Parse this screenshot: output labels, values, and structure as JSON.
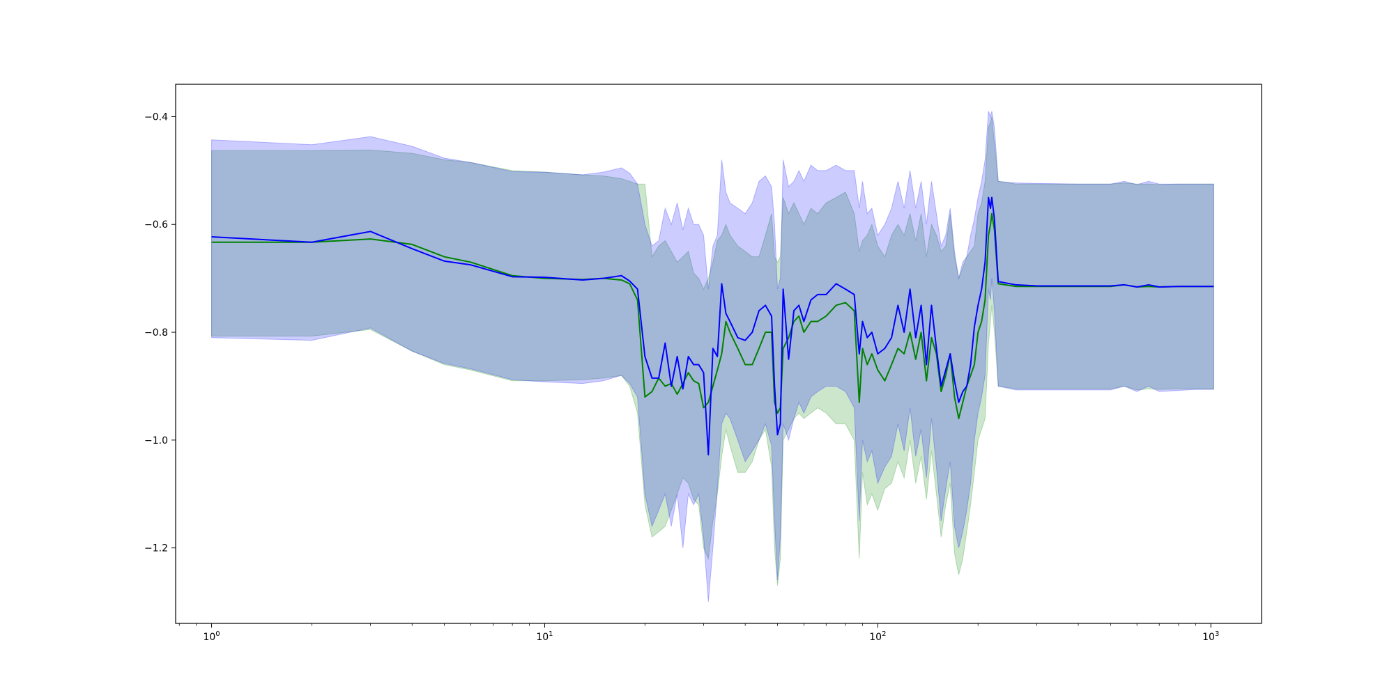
{
  "chart_data": {
    "type": "line",
    "title": "",
    "xlabel": "",
    "ylabel": "",
    "xscale": "log",
    "xlim": [
      0.78,
      1420
    ],
    "ylim": [
      -1.34,
      -0.34
    ],
    "grid": false,
    "x_ticks": [
      {
        "value": 1,
        "base": "10",
        "exp": "0"
      },
      {
        "value": 10,
        "base": "10",
        "exp": "1"
      },
      {
        "value": 100,
        "base": "10",
        "exp": "2"
      },
      {
        "value": 1000,
        "base": "10",
        "exp": "3"
      }
    ],
    "y_ticks": [
      {
        "value": -0.4,
        "label": "−0.4"
      },
      {
        "value": -0.6,
        "label": "−0.6"
      },
      {
        "value": -0.8,
        "label": "−0.8"
      },
      {
        "value": -1.0,
        "label": "−1.0"
      },
      {
        "value": -1.2,
        "label": "−1.2"
      }
    ],
    "series": [
      {
        "color": "#008000",
        "band_color": "#008000",
        "band_opacity": 0.2,
        "x": [
          1,
          2,
          3,
          4,
          5,
          6,
          8,
          10,
          13,
          15,
          17,
          18,
          19,
          20,
          21,
          22,
          23,
          24,
          25,
          26,
          27,
          28,
          29,
          30,
          31,
          32,
          33,
          34,
          35,
          36,
          38,
          40,
          42,
          44,
          46,
          48,
          49,
          50,
          51,
          52,
          54,
          56,
          58,
          60,
          63,
          66,
          70,
          75,
          80,
          85,
          88,
          90,
          93,
          96,
          100,
          105,
          110,
          115,
          120,
          125,
          130,
          135,
          140,
          145,
          150,
          155,
          160,
          165,
          170,
          175,
          180,
          185,
          190,
          195,
          200,
          205,
          210,
          215,
          218,
          220,
          224,
          230,
          260,
          300,
          400,
          500,
          550,
          600,
          650,
          700,
          800,
          900,
          1020
        ],
        "y": [
          -0.633,
          -0.633,
          -0.627,
          -0.637,
          -0.66,
          -0.67,
          -0.695,
          -0.7,
          -0.702,
          -0.7,
          -0.703,
          -0.71,
          -0.74,
          -0.92,
          -0.91,
          -0.885,
          -0.9,
          -0.895,
          -0.915,
          -0.895,
          -0.875,
          -0.89,
          -0.895,
          -0.94,
          -0.93,
          -0.9,
          -0.87,
          -0.84,
          -0.78,
          -0.8,
          -0.83,
          -0.86,
          -0.86,
          -0.83,
          -0.8,
          -0.8,
          -0.93,
          -0.95,
          -0.94,
          -0.83,
          -0.81,
          -0.78,
          -0.77,
          -0.8,
          -0.78,
          -0.78,
          -0.77,
          -0.75,
          -0.745,
          -0.76,
          -0.93,
          -0.83,
          -0.86,
          -0.84,
          -0.87,
          -0.89,
          -0.86,
          -0.83,
          -0.84,
          -0.8,
          -0.85,
          -0.8,
          -0.89,
          -0.81,
          -0.84,
          -0.91,
          -0.88,
          -0.84,
          -0.92,
          -0.96,
          -0.93,
          -0.9,
          -0.88,
          -0.86,
          -0.8,
          -0.78,
          -0.74,
          -0.62,
          -0.6,
          -0.58,
          -0.61,
          -0.71,
          -0.715,
          -0.715,
          -0.715,
          -0.715,
          -0.712,
          -0.716,
          -0.715,
          -0.716,
          -0.715,
          -0.715,
          -0.715
        ],
        "lower": [
          -0.807,
          -0.807,
          -0.795,
          -0.835,
          -0.86,
          -0.87,
          -0.89,
          -0.89,
          -0.888,
          -0.885,
          -0.88,
          -0.9,
          -0.95,
          -1.12,
          -1.18,
          -1.17,
          -1.16,
          -1.13,
          -1.1,
          -1.07,
          -1.08,
          -1.11,
          -1.12,
          -1.2,
          -1.22,
          -1.15,
          -1.1,
          -1.03,
          -0.98,
          -1.01,
          -1.06,
          -1.06,
          -1.04,
          -1.0,
          -0.98,
          -1.05,
          -1.2,
          -1.27,
          -1.22,
          -1.0,
          -0.98,
          -0.96,
          -0.95,
          -0.96,
          -0.95,
          -0.94,
          -0.95,
          -0.97,
          -0.97,
          -1.0,
          -1.22,
          -1.06,
          -1.12,
          -1.1,
          -1.13,
          -1.09,
          -1.08,
          -1.04,
          -1.07,
          -1.0,
          -1.08,
          -1.03,
          -1.11,
          -1.02,
          -1.1,
          -1.18,
          -1.12,
          -1.08,
          -1.21,
          -1.25,
          -1.22,
          -1.17,
          -1.12,
          -1.06,
          -1.0,
          -0.98,
          -0.96,
          -0.82,
          -0.78,
          -0.75,
          -0.8,
          -0.9,
          -0.905,
          -0.905,
          -0.905,
          -0.905,
          -0.9,
          -0.907,
          -0.905,
          -0.906,
          -0.905,
          -0.905,
          -0.905
        ],
        "upper": [
          -0.463,
          -0.463,
          -0.462,
          -0.468,
          -0.48,
          -0.485,
          -0.5,
          -0.503,
          -0.508,
          -0.51,
          -0.515,
          -0.52,
          -0.525,
          -0.525,
          -0.66,
          -0.64,
          -0.63,
          -0.65,
          -0.67,
          -0.66,
          -0.65,
          -0.69,
          -0.7,
          -0.72,
          -0.7,
          -0.67,
          -0.63,
          -0.62,
          -0.6,
          -0.62,
          -0.64,
          -0.65,
          -0.66,
          -0.66,
          -0.62,
          -0.58,
          -0.66,
          -0.67,
          -0.66,
          -0.55,
          -0.58,
          -0.56,
          -0.58,
          -0.6,
          -0.57,
          -0.58,
          -0.56,
          -0.55,
          -0.54,
          -0.58,
          -0.65,
          -0.63,
          -0.62,
          -0.6,
          -0.64,
          -0.66,
          -0.62,
          -0.6,
          -0.62,
          -0.58,
          -0.63,
          -0.58,
          -0.66,
          -0.6,
          -0.62,
          -0.65,
          -0.64,
          -0.58,
          -0.66,
          -0.7,
          -0.68,
          -0.66,
          -0.65,
          -0.64,
          -0.58,
          -0.56,
          -0.52,
          -0.42,
          -0.41,
          -0.4,
          -0.45,
          -0.52,
          -0.525,
          -0.525,
          -0.525,
          -0.525,
          -0.523,
          -0.525,
          -0.525,
          -0.526,
          -0.525,
          -0.525,
          -0.525
        ]
      },
      {
        "color": "#0000ff",
        "band_color": "#0000ff",
        "band_opacity": 0.2,
        "x": [
          1,
          2,
          3,
          4,
          5,
          6,
          8,
          10,
          13,
          15,
          17,
          18,
          19,
          20,
          21,
          22,
          23,
          24,
          25,
          26,
          27,
          28,
          29,
          30,
          31,
          32,
          33,
          34,
          35,
          36,
          38,
          40,
          42,
          44,
          46,
          48,
          49,
          50,
          51,
          52,
          54,
          56,
          58,
          60,
          63,
          66,
          70,
          75,
          80,
          85,
          88,
          90,
          93,
          96,
          100,
          105,
          110,
          115,
          120,
          125,
          130,
          135,
          140,
          145,
          150,
          155,
          160,
          165,
          170,
          175,
          180,
          185,
          190,
          195,
          200,
          205,
          210,
          215,
          218,
          220,
          224,
          230,
          260,
          300,
          400,
          500,
          550,
          600,
          650,
          700,
          800,
          900,
          1020
        ],
        "y": [
          -0.623,
          -0.633,
          -0.613,
          -0.645,
          -0.668,
          -0.675,
          -0.697,
          -0.698,
          -0.703,
          -0.7,
          -0.695,
          -0.705,
          -0.72,
          -0.845,
          -0.885,
          -0.885,
          -0.82,
          -0.9,
          -0.845,
          -0.905,
          -0.845,
          -0.86,
          -0.86,
          -0.875,
          -1.027,
          -0.83,
          -0.845,
          -0.71,
          -0.765,
          -0.78,
          -0.81,
          -0.815,
          -0.8,
          -0.76,
          -0.75,
          -0.77,
          -0.9,
          -0.99,
          -0.97,
          -0.72,
          -0.85,
          -0.76,
          -0.75,
          -0.78,
          -0.74,
          -0.73,
          -0.73,
          -0.71,
          -0.72,
          -0.73,
          -0.84,
          -0.78,
          -0.81,
          -0.8,
          -0.84,
          -0.83,
          -0.81,
          -0.75,
          -0.8,
          -0.72,
          -0.81,
          -0.75,
          -0.86,
          -0.75,
          -0.83,
          -0.9,
          -0.87,
          -0.84,
          -0.89,
          -0.93,
          -0.91,
          -0.9,
          -0.86,
          -0.79,
          -0.75,
          -0.72,
          -0.67,
          -0.55,
          -0.57,
          -0.55,
          -0.59,
          -0.706,
          -0.712,
          -0.714,
          -0.714,
          -0.714,
          -0.712,
          -0.716,
          -0.712,
          -0.716,
          -0.715,
          -0.715,
          -0.715
        ],
        "lower": [
          -0.81,
          -0.815,
          -0.792,
          -0.835,
          -0.858,
          -0.868,
          -0.888,
          -0.892,
          -0.895,
          -0.89,
          -0.88,
          -0.895,
          -0.92,
          -1.1,
          -1.16,
          -1.13,
          -1.1,
          -1.16,
          -1.1,
          -1.2,
          -1.1,
          -1.12,
          -1.1,
          -1.18,
          -1.3,
          -1.2,
          -1.09,
          -0.97,
          -0.95,
          -0.96,
          -1.0,
          -1.04,
          -1.02,
          -1.0,
          -0.97,
          -1.01,
          -1.15,
          -1.26,
          -1.18,
          -0.97,
          -1.0,
          -0.96,
          -0.93,
          -0.95,
          -0.92,
          -0.91,
          -0.9,
          -0.9,
          -0.91,
          -0.94,
          -1.15,
          -1.0,
          -1.04,
          -1.02,
          -1.08,
          -1.05,
          -1.03,
          -0.97,
          -1.02,
          -0.94,
          -1.03,
          -0.98,
          -1.07,
          -0.96,
          -1.05,
          -1.15,
          -1.09,
          -1.04,
          -1.16,
          -1.2,
          -1.17,
          -1.13,
          -1.08,
          -1.0,
          -0.95,
          -0.92,
          -0.88,
          -0.72,
          -0.74,
          -0.7,
          -0.76,
          -0.9,
          -0.907,
          -0.907,
          -0.907,
          -0.907,
          -0.9,
          -0.91,
          -0.9,
          -0.91,
          -0.908,
          -0.906,
          -0.906
        ],
        "upper": [
          -0.443,
          -0.452,
          -0.437,
          -0.455,
          -0.477,
          -0.485,
          -0.502,
          -0.503,
          -0.508,
          -0.503,
          -0.495,
          -0.505,
          -0.525,
          -0.6,
          -0.64,
          -0.63,
          -0.57,
          -0.6,
          -0.56,
          -0.61,
          -0.57,
          -0.6,
          -0.6,
          -0.62,
          -0.72,
          -0.64,
          -0.62,
          -0.48,
          -0.54,
          -0.56,
          -0.57,
          -0.58,
          -0.56,
          -0.52,
          -0.51,
          -0.53,
          -0.6,
          -0.72,
          -0.7,
          -0.48,
          -0.53,
          -0.52,
          -0.5,
          -0.52,
          -0.49,
          -0.5,
          -0.5,
          -0.49,
          -0.5,
          -0.5,
          -0.57,
          -0.52,
          -0.58,
          -0.57,
          -0.62,
          -0.6,
          -0.57,
          -0.52,
          -0.57,
          -0.5,
          -0.57,
          -0.52,
          -0.6,
          -0.52,
          -0.58,
          -0.64,
          -0.62,
          -0.57,
          -0.65,
          -0.7,
          -0.67,
          -0.66,
          -0.62,
          -0.59,
          -0.55,
          -0.52,
          -0.48,
          -0.39,
          -0.4,
          -0.39,
          -0.42,
          -0.52,
          -0.523,
          -0.524,
          -0.525,
          -0.525,
          -0.52,
          -0.526,
          -0.52,
          -0.525,
          -0.525,
          -0.525,
          -0.525
        ]
      }
    ]
  }
}
